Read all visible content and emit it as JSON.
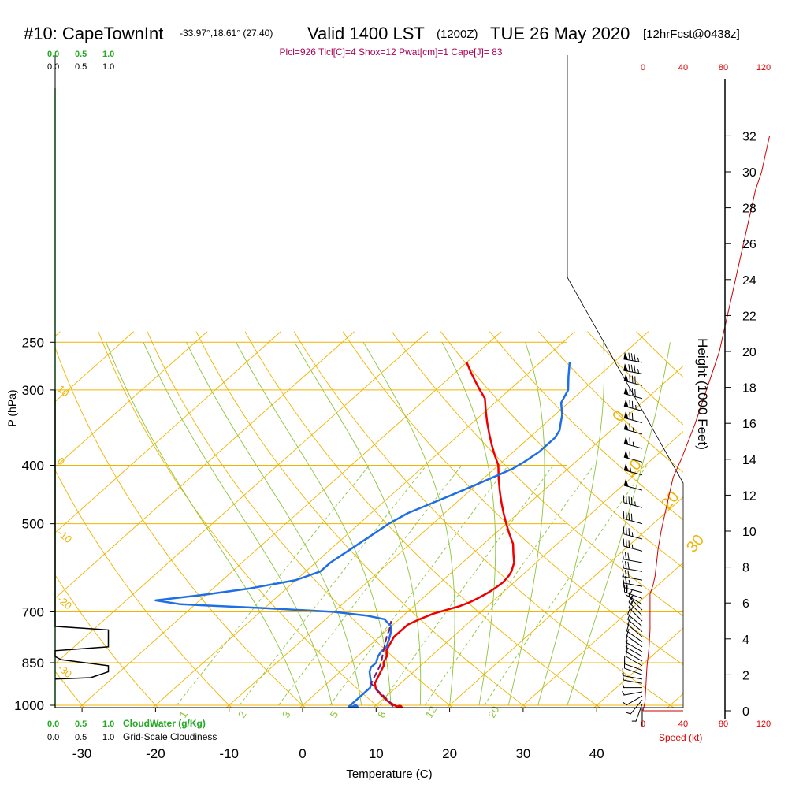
{
  "header": {
    "station": "#10: CapeTownInt",
    "location": "-33.97°,18.61° (27,40)",
    "valid": "Valid 1400 LST",
    "zulu": "(1200Z)",
    "date": "TUE 26 May 2020",
    "forecast": "[12hrFcst@0438z]"
  },
  "indices_line": "Plcl=926 Tlcl[C]=4 Shox=12 Pwat[cm]=1 Cape[J]= 83",
  "cloud_scales": {
    "cloudwater_ticks": [
      "0.0",
      "0.5",
      "1.0"
    ],
    "cloudwater_label": "CloudWater (g/Kg)",
    "cloudiness_ticks": [
      "0.0",
      "0.5",
      "1.0"
    ],
    "cloudiness_label": "Grid-Scale Cloudiness"
  },
  "speed_axis": {
    "ticks": [
      "0",
      "40",
      "80",
      "120"
    ],
    "label": "Speed (kt)"
  },
  "colors": {
    "temperature": "#ee0000",
    "dewpoint": "#1e6ee6",
    "parcel": "#7a1a6e",
    "isotherm": "#f0b400",
    "dry_adiabat": "#f0b400",
    "moist_adiabat": "#8cc43c",
    "mixing_ratio": "#8cc43c",
    "cloudwater": "#22aa22",
    "speed": "#cc0000"
  },
  "chart_data": {
    "type": "line",
    "xlabel": "Temperature (C)",
    "ylabel": "P (hPa)",
    "y2label": "Height (1000 Feet)",
    "x_ticks": [
      -30,
      -20,
      -10,
      0,
      10,
      20,
      30,
      40
    ],
    "p_ticks": [
      250,
      300,
      400,
      500,
      700,
      850,
      1000
    ],
    "height_ticks": [
      0,
      2,
      4,
      6,
      8,
      10,
      12,
      14,
      16,
      18,
      20,
      22,
      24,
      26,
      28,
      30,
      32
    ],
    "p_range": [
      250,
      1020
    ],
    "x_range_at_1000hPa": [
      -34,
      46
    ],
    "isotherm_labels": [
      {
        "t": 0,
        "p": 340,
        "label": "0"
      },
      {
        "t": 10,
        "p": 420,
        "label": "10"
      },
      {
        "t": 20,
        "p": 475,
        "label": "20"
      },
      {
        "t": 30,
        "p": 560,
        "label": "30"
      }
    ],
    "dry_adiabat_labels": [
      {
        "p": 300,
        "label": "10"
      },
      {
        "p": 395,
        "label": "0"
      },
      {
        "p": 520,
        "label": "-10"
      },
      {
        "p": 670,
        "label": "-20"
      },
      {
        "p": 870,
        "label": "-30"
      }
    ],
    "mixing_ratio_labels": [
      {
        "t": -16,
        "label": "1"
      },
      {
        "t": -8,
        "label": "2"
      },
      {
        "t": -2,
        "label": "3"
      },
      {
        "t": 4.5,
        "label": "5"
      },
      {
        "t": 11,
        "label": "8"
      },
      {
        "t": 17.5,
        "label": "12"
      },
      {
        "t": 26,
        "label": "20"
      }
    ],
    "series": [
      {
        "name": "Temperature",
        "points": [
          [
            13.6,
            1010
          ],
          [
            12.5,
            1000
          ],
          [
            11,
            985
          ],
          [
            9,
            960
          ],
          [
            7.5,
            940
          ],
          [
            6.5,
            920
          ],
          [
            6,
            900
          ],
          [
            5.5,
            880
          ],
          [
            5,
            860
          ],
          [
            4.5,
            850
          ],
          [
            4,
            830
          ],
          [
            3,
            810
          ],
          [
            2.5,
            790
          ],
          [
            2,
            770
          ],
          [
            2,
            750
          ],
          [
            2,
            735
          ],
          [
            2.8,
            720
          ],
          [
            3.8,
            705
          ],
          [
            5,
            695
          ],
          [
            6.2,
            685
          ],
          [
            7,
            675
          ],
          [
            7.5,
            665
          ],
          [
            8,
            652
          ],
          [
            8.3,
            640
          ],
          [
            8.5,
            625
          ],
          [
            8.3,
            610
          ],
          [
            8,
            600
          ],
          [
            7,
            580
          ],
          [
            5.5,
            560
          ],
          [
            4,
            540
          ],
          [
            2,
            520
          ],
          [
            0,
            500
          ],
          [
            -2,
            480
          ],
          [
            -4,
            460
          ],
          [
            -6,
            440
          ],
          [
            -8,
            420
          ],
          [
            -10,
            400
          ],
          [
            -12,
            385
          ],
          [
            -14,
            370
          ],
          [
            -16,
            355
          ],
          [
            -18,
            340
          ],
          [
            -20,
            325
          ],
          [
            -22,
            310
          ],
          [
            -24,
            300
          ],
          [
            -26,
            290
          ],
          [
            -28,
            280
          ],
          [
            -30,
            270
          ]
        ]
      },
      {
        "name": "Dewpoint",
        "points": [
          [
            7.5,
            1005
          ],
          [
            6.5,
            1005
          ],
          [
            6.5,
            995
          ],
          [
            6.5,
            980
          ],
          [
            6.5,
            965
          ],
          [
            6.5,
            950
          ],
          [
            6.5,
            935
          ],
          [
            6,
            920
          ],
          [
            5,
            900
          ],
          [
            4,
            880
          ],
          [
            3.5,
            865
          ],
          [
            3.5,
            850
          ],
          [
            2.8,
            830
          ],
          [
            2.5,
            815
          ],
          [
            2.5,
            800
          ],
          [
            1.8,
            780
          ],
          [
            1,
            760
          ],
          [
            0,
            740
          ],
          [
            -2,
            720
          ],
          [
            -5,
            710
          ],
          [
            -10,
            700
          ],
          [
            -20,
            690
          ],
          [
            -32,
            680
          ],
          [
            -36,
            670
          ],
          [
            -30,
            655
          ],
          [
            -25,
            640
          ],
          [
            -20,
            620
          ],
          [
            -18,
            600
          ],
          [
            -18,
            580
          ],
          [
            -17.5,
            560
          ],
          [
            -17,
            540
          ],
          [
            -16.5,
            520
          ],
          [
            -16,
            500
          ],
          [
            -15,
            480
          ],
          [
            -13,
            460
          ],
          [
            -11,
            440
          ],
          [
            -9,
            420
          ],
          [
            -7.5,
            405
          ],
          [
            -7,
            395
          ],
          [
            -6.5,
            380
          ],
          [
            -6.5,
            370
          ],
          [
            -6.5,
            360
          ],
          [
            -7,
            350
          ],
          [
            -8,
            340
          ],
          [
            -9,
            330
          ],
          [
            -11,
            315
          ],
          [
            -12,
            300
          ],
          [
            -14,
            285
          ],
          [
            -16,
            270
          ]
        ]
      },
      {
        "name": "Parcel",
        "points": [
          [
            12.5,
            1005
          ],
          [
            10,
            970
          ],
          [
            7.5,
            940
          ],
          [
            6,
            920
          ],
          [
            5.5,
            900
          ],
          [
            5,
            880
          ],
          [
            4.5,
            860
          ],
          [
            4,
            845
          ],
          [
            3.2,
            825
          ],
          [
            2.6,
            810
          ],
          [
            2,
            795
          ],
          [
            1.4,
            780
          ],
          [
            0.8,
            765
          ],
          [
            0.3,
            750
          ],
          [
            -0.2,
            738
          ],
          [
            -0.8,
            725
          ]
        ]
      }
    ],
    "markers": [
      {
        "name": "Surface temperature",
        "t": 13.6,
        "p": 1010
      },
      {
        "name": "Surface dewpoint",
        "t": 7.5,
        "p": 1008
      }
    ],
    "cloudiness_profile": [
      [
        0,
        300
      ],
      [
        0,
        740
      ],
      [
        0.9,
        750
      ],
      [
        0.9,
        800
      ],
      [
        0,
        812
      ],
      [
        0,
        830
      ],
      [
        0.1,
        840
      ],
      [
        0.9,
        860
      ],
      [
        0.9,
        880
      ],
      [
        0.6,
        900
      ],
      [
        0,
        905
      ]
    ],
    "wind_speed_profile": [
      [
        0,
        0
      ],
      [
        2,
        0.5
      ],
      [
        3,
        1.5
      ],
      [
        4,
        2.5
      ],
      [
        6,
        3.5
      ],
      [
        7,
        4.5
      ],
      [
        7,
        5.5
      ],
      [
        7,
        6.5
      ],
      [
        10,
        7
      ],
      [
        12,
        7.5
      ],
      [
        13,
        8
      ],
      [
        15,
        9
      ],
      [
        18,
        10
      ],
      [
        22,
        11
      ],
      [
        26,
        12
      ],
      [
        30,
        13
      ],
      [
        38,
        14
      ],
      [
        45,
        15
      ],
      [
        52,
        16
      ],
      [
        58,
        17
      ],
      [
        64,
        18
      ],
      [
        70,
        19
      ],
      [
        76,
        20
      ],
      [
        80,
        21
      ],
      [
        84,
        22
      ],
      [
        88,
        23
      ],
      [
        92,
        24
      ],
      [
        96,
        25
      ],
      [
        100,
        26
      ],
      [
        104,
        27
      ],
      [
        108,
        28
      ],
      [
        112,
        29
      ],
      [
        118,
        30
      ],
      [
        122,
        31
      ],
      [
        126,
        32
      ]
    ],
    "wind_barbs": [
      {
        "p": 1010,
        "dir": 180,
        "kt": 2
      },
      {
        "p": 995,
        "dir": 200,
        "kt": 5
      },
      {
        "p": 980,
        "dir": 220,
        "kt": 5
      },
      {
        "p": 965,
        "dir": 240,
        "kt": 5
      },
      {
        "p": 950,
        "dir": 260,
        "kt": 5
      },
      {
        "p": 935,
        "dir": 270,
        "kt": 5
      },
      {
        "p": 920,
        "dir": 280,
        "kt": 10
      },
      {
        "p": 905,
        "dir": 280,
        "kt": 10
      },
      {
        "p": 890,
        "dir": 290,
        "kt": 10
      },
      {
        "p": 875,
        "dir": 290,
        "kt": 10
      },
      {
        "p": 860,
        "dir": 300,
        "kt": 10
      },
      {
        "p": 845,
        "dir": 300,
        "kt": 10
      },
      {
        "p": 830,
        "dir": 300,
        "kt": 10
      },
      {
        "p": 815,
        "dir": 300,
        "kt": 10
      },
      {
        "p": 800,
        "dir": 305,
        "kt": 10
      },
      {
        "p": 785,
        "dir": 305,
        "kt": 10
      },
      {
        "p": 770,
        "dir": 310,
        "kt": 10
      },
      {
        "p": 755,
        "dir": 310,
        "kt": 10
      },
      {
        "p": 740,
        "dir": 310,
        "kt": 10
      },
      {
        "p": 725,
        "dir": 315,
        "kt": 15
      },
      {
        "p": 710,
        "dir": 315,
        "kt": 15
      },
      {
        "p": 695,
        "dir": 315,
        "kt": 15
      },
      {
        "p": 680,
        "dir": 300,
        "kt": 15
      },
      {
        "p": 665,
        "dir": 290,
        "kt": 20
      },
      {
        "p": 650,
        "dir": 285,
        "kt": 20
      },
      {
        "p": 635,
        "dir": 280,
        "kt": 25
      },
      {
        "p": 620,
        "dir": 280,
        "kt": 30
      },
      {
        "p": 600,
        "dir": 280,
        "kt": 30
      },
      {
        "p": 580,
        "dir": 280,
        "kt": 30
      },
      {
        "p": 555,
        "dir": 285,
        "kt": 35
      },
      {
        "p": 530,
        "dir": 285,
        "kt": 35
      },
      {
        "p": 500,
        "dir": 285,
        "kt": 40
      },
      {
        "p": 470,
        "dir": 285,
        "kt": 45
      },
      {
        "p": 440,
        "dir": 285,
        "kt": 50
      },
      {
        "p": 415,
        "dir": 285,
        "kt": 55
      },
      {
        "p": 395,
        "dir": 285,
        "kt": 60
      },
      {
        "p": 375,
        "dir": 285,
        "kt": 65
      },
      {
        "p": 355,
        "dir": 285,
        "kt": 65
      },
      {
        "p": 340,
        "dir": 285,
        "kt": 70
      },
      {
        "p": 325,
        "dir": 285,
        "kt": 75
      },
      {
        "p": 310,
        "dir": 285,
        "kt": 80
      },
      {
        "p": 295,
        "dir": 285,
        "kt": 80
      },
      {
        "p": 282,
        "dir": 280,
        "kt": 85
      },
      {
        "p": 270,
        "dir": 280,
        "kt": 85
      }
    ]
  }
}
